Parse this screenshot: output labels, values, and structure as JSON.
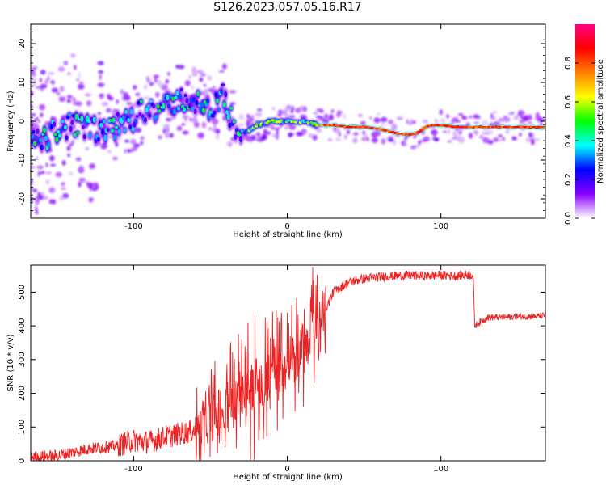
{
  "title": "S126.2023.057.05.16.R17",
  "chart_data": [
    {
      "type": "heatmap",
      "title": "S126.2023.057.05.16.R17",
      "xlabel": "Height of straight line (km)",
      "ylabel": "Frequency (Hz)",
      "xlim": [
        -167,
        168
      ],
      "ylim": [
        -25,
        25
      ],
      "x_ticks": [
        -100,
        0,
        100
      ],
      "y_ticks": [
        -20,
        -10,
        0,
        10,
        20
      ],
      "colorbar": {
        "label": "Normalized spectral amplitude",
        "range": [
          0,
          1
        ],
        "ticks": [
          0.0,
          0.2,
          0.4,
          0.6,
          0.8
        ],
        "colors": [
          "#ffffff",
          "#8a00ff",
          "#0000ff",
          "#00ffff",
          "#00ff00",
          "#ffff00",
          "#ff8000",
          "#ff0000",
          "#ff0080"
        ]
      },
      "ridge": {
        "x": [
          -160,
          -150,
          -140,
          -130,
          -120,
          -110,
          -100,
          -90,
          -80,
          -70,
          -60,
          -50,
          -42,
          -35,
          -28,
          -20,
          -10,
          0,
          10,
          20,
          30,
          40,
          50,
          60,
          70,
          80,
          85,
          90,
          95,
          100,
          110,
          120,
          130,
          140,
          150,
          160,
          168
        ],
        "y": [
          -5,
          -2,
          -1,
          -2,
          -3,
          -1,
          1,
          4,
          3,
          6,
          5,
          2,
          7,
          -1,
          -3,
          -1,
          0,
          0,
          0,
          -1,
          -1,
          -1.5,
          -1.5,
          -2,
          -3,
          -3.5,
          -3,
          -1.5,
          -1,
          -1,
          -1.5,
          -1.5,
          -1.5,
          -1.5,
          -1.5,
          -1.5,
          -1.5
        ]
      }
    },
    {
      "type": "line",
      "title": "",
      "xlabel": "Height of straight line (km)",
      "ylabel": "SNR (10 * v/v)",
      "xlim": [
        -167,
        168
      ],
      "ylim": [
        0,
        580
      ],
      "x_ticks": [
        -100,
        0,
        100
      ],
      "y_ticks": [
        0,
        100,
        200,
        300,
        400,
        500
      ],
      "color": "#ee2222",
      "series": [
        {
          "x": [
            -167,
            -150,
            -140,
            -130,
            -120,
            -110,
            -100,
            -90,
            -80,
            -70,
            -60,
            -50,
            -40,
            -30,
            -20,
            -10,
            0,
            10,
            20,
            25,
            30,
            40,
            50,
            60,
            70,
            80,
            90,
            100,
            110,
            118,
            121,
            122,
            130,
            140,
            150,
            160,
            168
          ],
          "y": [
            10,
            15,
            25,
            35,
            40,
            45,
            60,
            55,
            70,
            80,
            90,
            120,
            160,
            180,
            210,
            260,
            280,
            330,
            400,
            450,
            500,
            530,
            540,
            545,
            548,
            550,
            548,
            550,
            548,
            552,
            550,
            400,
            425,
            425,
            428,
            428,
            430
          ]
        }
      ]
    }
  ]
}
